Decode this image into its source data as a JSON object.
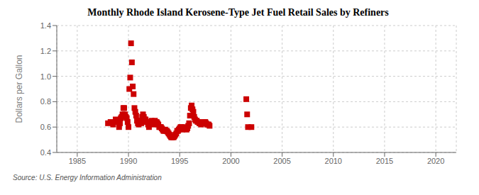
{
  "chart_data": {
    "type": "scatter",
    "title": "Monthly Rhode Island Kerosene-Type Jet Fuel Retail Sales by Refiners",
    "y_label": "Dollars per Gallon",
    "annotations": [
      "Source: U.S. Energy Information Administration"
    ],
    "color": "#cc0000",
    "marker": "square",
    "grid": true,
    "xlim": [
      1983,
      2022
    ],
    "ylim": [
      0.4,
      1.4
    ],
    "xticks": [
      1985,
      1990,
      1995,
      2000,
      2005,
      2010,
      2015,
      2020
    ],
    "yticks": [
      0.4,
      0.6,
      0.8,
      {
        "value": 1.0,
        "label": "1.0"
      },
      1.2,
      1.4
    ],
    "x": [
      1988.0,
      1988.25,
      1988.5,
      1988.75,
      1989.0,
      1989.083,
      1989.167,
      1989.25,
      1989.333,
      1989.417,
      1989.5,
      1989.583,
      1989.667,
      1989.75,
      1989.833,
      1989.917,
      1990.0,
      1990.083,
      1990.167,
      1990.25,
      1990.333,
      1990.417,
      1990.5,
      1990.583,
      1990.667,
      1990.75,
      1990.833,
      1990.917,
      1991.0,
      1991.083,
      1991.167,
      1991.25,
      1991.333,
      1991.417,
      1991.5,
      1991.583,
      1991.667,
      1991.75,
      1991.833,
      1991.917,
      1992.0,
      1992.083,
      1992.167,
      1992.25,
      1992.333,
      1992.417,
      1992.5,
      1992.583,
      1992.667,
      1992.75,
      1992.833,
      1992.917,
      1993.0,
      1993.083,
      1993.167,
      1993.25,
      1993.333,
      1993.417,
      1993.5,
      1993.583,
      1993.667,
      1993.75,
      1993.833,
      1993.917,
      1994.0,
      1994.083,
      1994.167,
      1994.25,
      1994.333,
      1994.417,
      1994.5,
      1994.583,
      1994.667,
      1994.75,
      1994.833,
      1994.917,
      1995.0,
      1995.083,
      1995.167,
      1995.25,
      1995.333,
      1995.417,
      1995.5,
      1995.583,
      1995.667,
      1995.75,
      1995.833,
      1995.917,
      1996.0,
      1996.083,
      1996.167,
      1996.25,
      1996.333,
      1996.417,
      1996.5,
      1996.583,
      1996.667,
      1996.75,
      1996.833,
      1996.917,
      1997.0,
      1997.083,
      1997.167,
      1997.25,
      1997.333,
      1997.417,
      1997.5,
      1997.583,
      1997.667,
      1997.75,
      1997.833,
      1997.917,
      2001.5,
      2001.583,
      2001.667,
      2002.0
    ],
    "values": [
      0.63,
      0.64,
      0.62,
      0.66,
      0.64,
      0.6,
      0.63,
      0.67,
      0.68,
      0.7,
      0.75,
      0.75,
      0.7,
      0.68,
      0.67,
      0.64,
      0.6,
      0.9,
      0.99,
      1.26,
      1.11,
      0.92,
      0.86,
      0.75,
      0.72,
      0.69,
      0.65,
      0.63,
      0.62,
      0.65,
      0.64,
      0.63,
      0.68,
      0.7,
      0.68,
      0.66,
      0.66,
      0.64,
      0.64,
      0.62,
      0.6,
      0.63,
      0.64,
      0.65,
      0.63,
      0.62,
      0.64,
      0.65,
      0.63,
      0.64,
      0.63,
      0.62,
      0.6,
      0.6,
      0.6,
      0.59,
      0.58,
      0.57,
      0.57,
      0.58,
      0.57,
      0.57,
      0.56,
      0.55,
      0.54,
      0.53,
      0.52,
      0.52,
      0.52,
      0.52,
      0.53,
      0.54,
      0.55,
      0.57,
      0.57,
      0.58,
      0.59,
      0.6,
      0.6,
      0.58,
      0.59,
      0.59,
      0.6,
      0.59,
      0.58,
      0.59,
      0.61,
      0.63,
      0.69,
      0.75,
      0.77,
      0.74,
      0.72,
      0.68,
      0.66,
      0.65,
      0.65,
      0.64,
      0.64,
      0.63,
      0.63,
      0.62,
      0.63,
      0.63,
      0.64,
      0.63,
      0.64,
      0.63,
      0.62,
      0.62,
      0.62,
      0.61,
      0.82,
      0.7,
      0.6,
      0.6
    ]
  }
}
